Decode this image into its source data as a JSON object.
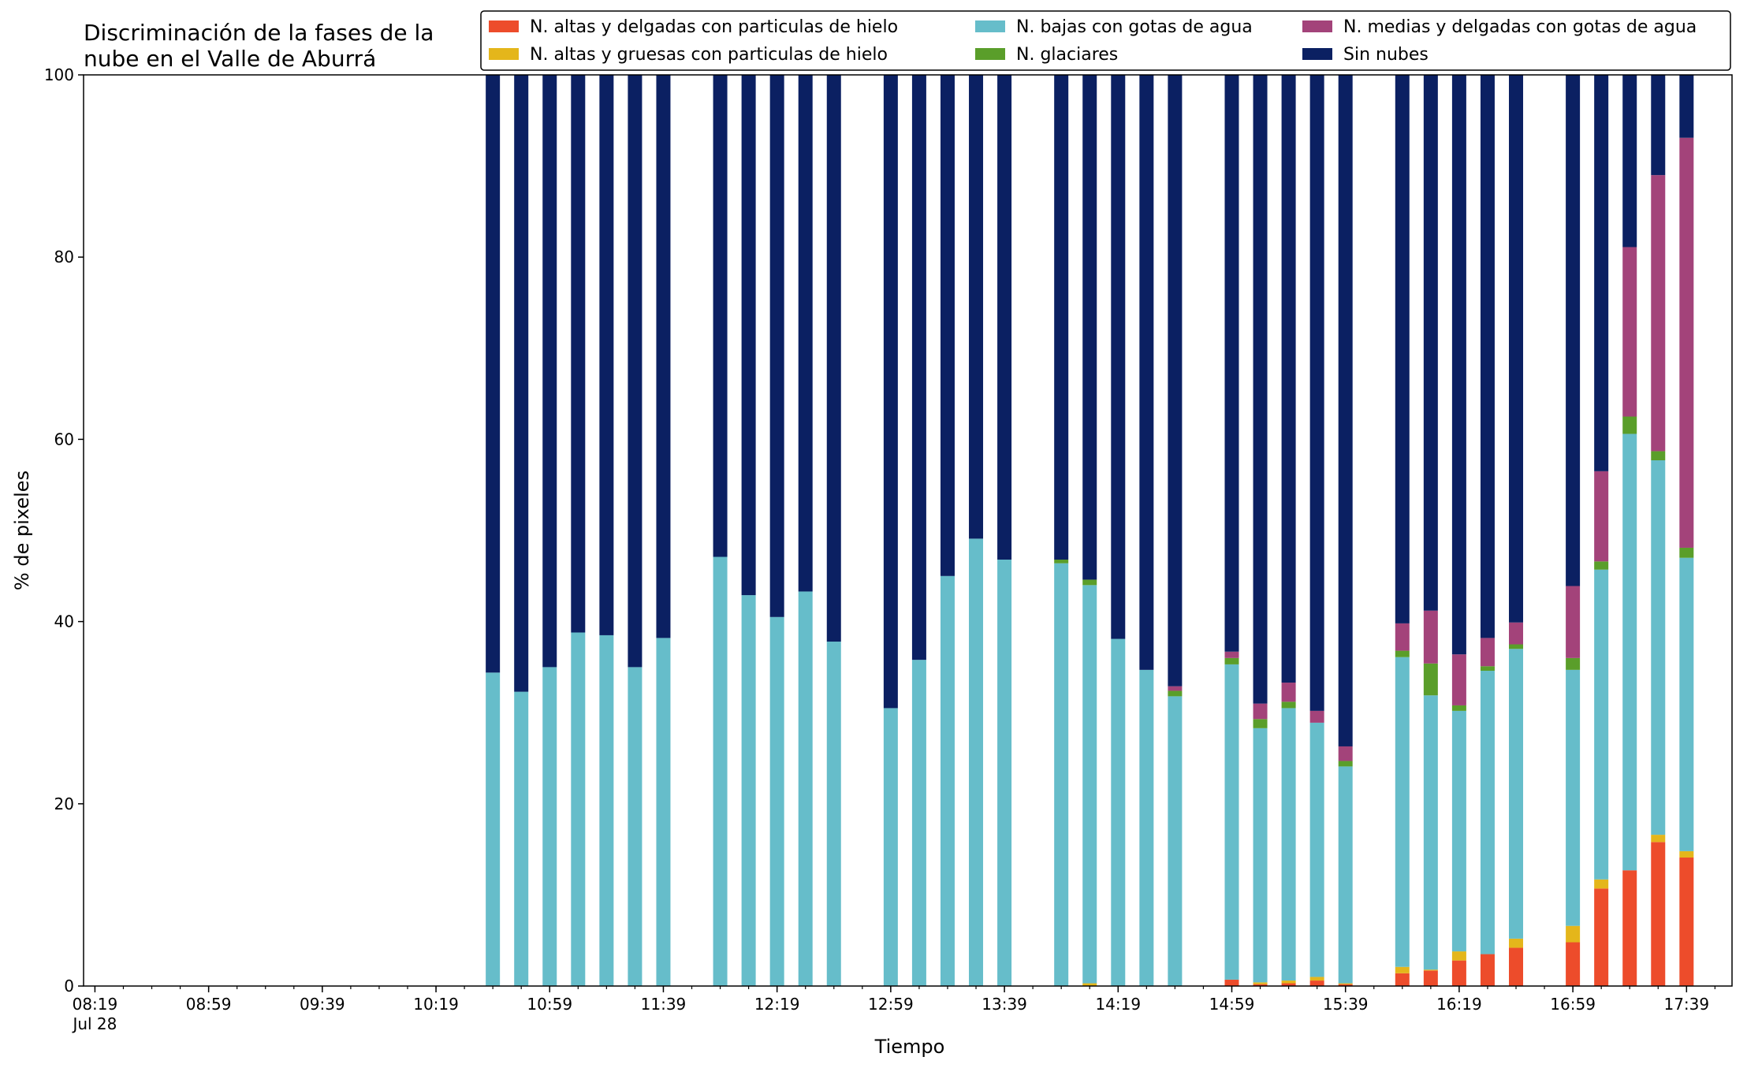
{
  "chart_data": {
    "type": "bar",
    "stacked": true,
    "title": "Discriminación de la fases de la\nnube en el Valle de Aburrá",
    "xlabel": "Tiempo",
    "ylabel": "% de pixeles",
    "ylim": [
      0,
      100
    ],
    "yticks": [
      0,
      20,
      40,
      60,
      80,
      100
    ],
    "x_range_minutes": [
      499,
      1071
    ],
    "x_major_ticks": [
      {
        "minutes": 499,
        "label": "08:19",
        "sublabel": "Jul 28"
      },
      {
        "minutes": 539,
        "label": "08:59"
      },
      {
        "minutes": 579,
        "label": "09:39"
      },
      {
        "minutes": 619,
        "label": "10:19"
      },
      {
        "minutes": 659,
        "label": "10:59"
      },
      {
        "minutes": 699,
        "label": "11:39"
      },
      {
        "minutes": 739,
        "label": "12:19"
      },
      {
        "minutes": 779,
        "label": "12:59"
      },
      {
        "minutes": 819,
        "label": "13:39"
      },
      {
        "minutes": 859,
        "label": "14:19"
      },
      {
        "minutes": 899,
        "label": "14:59"
      },
      {
        "minutes": 939,
        "label": "15:39"
      },
      {
        "minutes": 979,
        "label": "16:19"
      },
      {
        "minutes": 1019,
        "label": "16:59"
      },
      {
        "minutes": 1059,
        "label": "17:39"
      }
    ],
    "x_minor_tick_step_minutes": 10,
    "x": [
      "10:39",
      "10:49",
      "10:59",
      "11:09",
      "11:19",
      "11:29",
      "11:39",
      "11:59",
      "12:09",
      "12:19",
      "12:29",
      "12:39",
      "12:59",
      "13:09",
      "13:19",
      "13:29",
      "13:39",
      "13:59",
      "14:09",
      "14:19",
      "14:29",
      "14:39",
      "14:59",
      "15:09",
      "15:19",
      "15:29",
      "15:39",
      "15:59",
      "16:09",
      "16:19",
      "16:29",
      "16:39",
      "16:59",
      "17:09",
      "17:19",
      "17:29",
      "17:39"
    ],
    "x_minutes": [
      639,
      649,
      659,
      669,
      679,
      689,
      699,
      719,
      729,
      739,
      749,
      759,
      779,
      789,
      799,
      809,
      819,
      839,
      849,
      859,
      869,
      879,
      899,
      909,
      919,
      929,
      939,
      959,
      969,
      979,
      989,
      999,
      1019,
      1029,
      1039,
      1049,
      1059
    ],
    "series": [
      {
        "name": "N. altas y delgadas con particulas de hielo",
        "color": "#ed4c2b",
        "values": [
          0,
          0,
          0,
          0,
          0,
          0,
          0,
          0,
          0,
          0,
          0,
          0,
          0,
          0,
          0,
          0,
          0,
          0,
          0,
          0,
          0,
          0,
          0.7,
          0.2,
          0.3,
          0.6,
          0.2,
          1.4,
          1.7,
          2.8,
          3.5,
          4.2,
          4.8,
          10.7,
          12.7,
          15.8,
          14.1
        ]
      },
      {
        "name": "N. altas y gruesas con particulas de hielo",
        "color": "#e4b61b",
        "values": [
          0,
          0,
          0,
          0,
          0,
          0,
          0,
          0,
          0,
          0,
          0,
          0,
          0,
          0,
          0,
          0,
          0,
          0,
          0.3,
          0,
          0,
          0,
          0,
          0.2,
          0.3,
          0.4,
          0.1,
          0.7,
          0.1,
          1.0,
          0,
          1.0,
          1.8,
          1.0,
          0,
          0.8,
          0.7
        ]
      },
      {
        "name": "N. bajas con gotas de agua",
        "color": "#66bdca",
        "values": [
          34.4,
          32.3,
          35.0,
          38.8,
          38.5,
          35.0,
          38.2,
          47.1,
          42.9,
          40.5,
          43.3,
          37.8,
          30.5,
          35.8,
          45.0,
          49.1,
          46.8,
          46.4,
          43.7,
          38.1,
          34.7,
          31.8,
          34.6,
          27.9,
          29.9,
          27.9,
          23.8,
          34.0,
          30.1,
          26.4,
          31.1,
          31.8,
          28.1,
          34.0,
          47.9,
          41.1,
          32.2
        ]
      },
      {
        "name": "N. glaciares",
        "color": "#5a9e2a",
        "values": [
          0,
          0,
          0,
          0,
          0,
          0,
          0,
          0,
          0,
          0,
          0,
          0,
          0,
          0,
          0,
          0,
          0,
          0.4,
          0.6,
          0,
          0,
          0.6,
          0.7,
          1.0,
          0.7,
          0,
          0.6,
          0.7,
          3.5,
          0.6,
          0.5,
          0.5,
          1.3,
          0.9,
          1.9,
          1.0,
          1.1
        ]
      },
      {
        "name": "N. medias y delgadas con gotas de agua",
        "color": "#a3437a",
        "values": [
          0,
          0,
          0,
          0,
          0,
          0,
          0,
          0,
          0,
          0,
          0,
          0,
          0,
          0,
          0,
          0,
          0,
          0,
          0,
          0,
          0,
          0.5,
          0.7,
          1.7,
          2.1,
          1.3,
          1.6,
          3.0,
          5.8,
          5.6,
          3.1,
          2.4,
          7.9,
          9.9,
          18.6,
          30.3,
          45.0
        ]
      },
      {
        "name": "Sin nubes",
        "color": "#0b2062",
        "values": [
          65.6,
          67.7,
          65.0,
          61.2,
          61.5,
          65.0,
          61.8,
          52.9,
          57.1,
          59.5,
          56.7,
          62.2,
          69.5,
          64.2,
          55.0,
          50.9,
          53.2,
          53.2,
          55.4,
          61.9,
          65.3,
          67.1,
          63.3,
          69.0,
          66.7,
          69.8,
          73.7,
          60.2,
          58.8,
          63.6,
          61.8,
          60.1,
          56.1,
          43.5,
          18.9,
          11.0,
          6.9
        ]
      }
    ],
    "legend": {
      "placement": "top-right",
      "columns": 3
    },
    "grid": false
  }
}
